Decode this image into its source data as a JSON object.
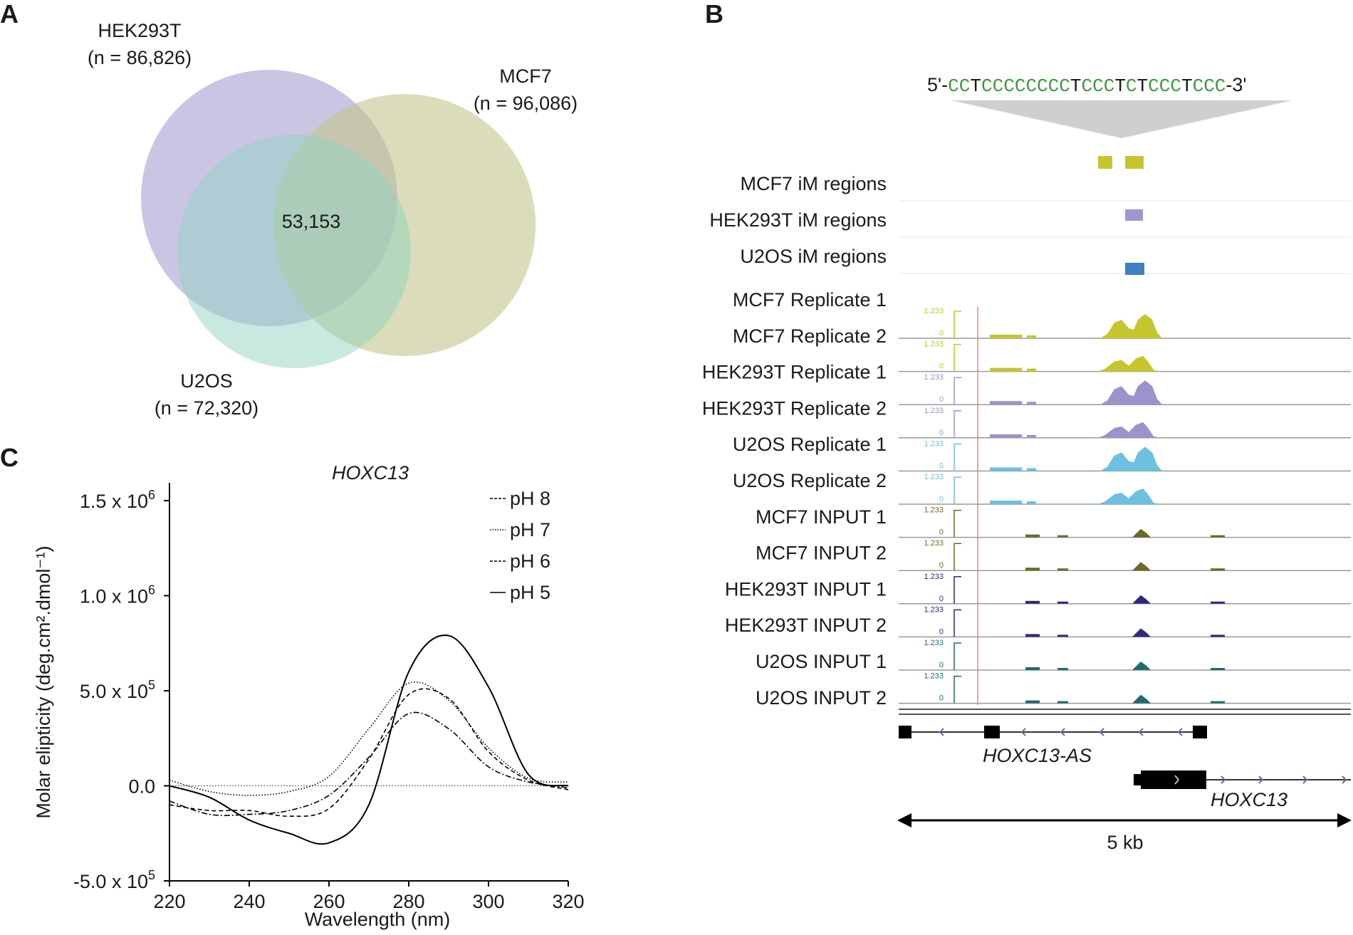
{
  "panels": {
    "a": "A",
    "b": "B",
    "c": "C"
  },
  "venn": {
    "sets": [
      {
        "name": "HEK293T",
        "count": "(n = 86,826)",
        "color": "#a99fd2"
      },
      {
        "name": "MCF7",
        "count": "(n = 96,086)",
        "color": "#c3c48a"
      },
      {
        "name": "U2OS",
        "count": "(n = 72,320)",
        "color": "#90d4c1"
      }
    ],
    "overlap": "53,153"
  },
  "sequence": {
    "prefix": "5'-",
    "suffix": "-3'",
    "bases": [
      {
        "b": "C",
        "c": "#3a9a3a"
      },
      {
        "b": "C",
        "c": "#3a9a3a"
      },
      {
        "b": "T",
        "c": "#1a1a1a"
      },
      {
        "b": "C",
        "c": "#3a9a3a"
      },
      {
        "b": "C",
        "c": "#3a9a3a"
      },
      {
        "b": "C",
        "c": "#3a9a3a"
      },
      {
        "b": "C",
        "c": "#3a9a3a"
      },
      {
        "b": "C",
        "c": "#3a9a3a"
      },
      {
        "b": "C",
        "c": "#3a9a3a"
      },
      {
        "b": "C",
        "c": "#3a9a3a"
      },
      {
        "b": "C",
        "c": "#3a9a3a"
      },
      {
        "b": "T",
        "c": "#1a1a1a"
      },
      {
        "b": "C",
        "c": "#3a9a3a"
      },
      {
        "b": "C",
        "c": "#3a9a3a"
      },
      {
        "b": "C",
        "c": "#3a9a3a"
      },
      {
        "b": "T",
        "c": "#1a1a1a"
      },
      {
        "b": "C",
        "c": "#3a9a3a"
      },
      {
        "b": "T",
        "c": "#1a1a1a"
      },
      {
        "b": "C",
        "c": "#3a9a3a"
      },
      {
        "b": "C",
        "c": "#3a9a3a"
      },
      {
        "b": "C",
        "c": "#3a9a3a"
      },
      {
        "b": "T",
        "c": "#1a1a1a"
      },
      {
        "b": "C",
        "c": "#3a9a3a"
      },
      {
        "b": "C",
        "c": "#3a9a3a"
      },
      {
        "b": "C",
        "c": "#3a9a3a"
      }
    ]
  },
  "region_tracks": [
    {
      "label": "MCF7 iM regions",
      "color": "#c5c62d"
    },
    {
      "label": "HEK293T iM regions",
      "color": "#a196d0"
    },
    {
      "label": "U2OS iM regions",
      "color": "#3f7fc4"
    }
  ],
  "signal_tracks": [
    {
      "label": "MCF7 Replicate 1",
      "color": "#c5c62d",
      "type": "rep"
    },
    {
      "label": "MCF7 Replicate 2",
      "color": "#c5c62d",
      "type": "rep"
    },
    {
      "label": "HEK293T Replicate 1",
      "color": "#9d93cb",
      "type": "rep"
    },
    {
      "label": "HEK293T Replicate 2",
      "color": "#9d93cb",
      "type": "rep"
    },
    {
      "label": "U2OS Replicate 1",
      "color": "#6cc0e0",
      "type": "rep"
    },
    {
      "label": "U2OS Replicate 2",
      "color": "#6cc0e0",
      "type": "rep"
    },
    {
      "label": "MCF7 INPUT 1",
      "color": "#6b6a22",
      "type": "input"
    },
    {
      "label": "MCF7 INPUT 2",
      "color": "#6b6a22",
      "type": "input"
    },
    {
      "label": "HEK293T INPUT 1",
      "color": "#2e2a7a",
      "type": "input"
    },
    {
      "label": "HEK293T INPUT 2",
      "color": "#2e2a7a",
      "type": "input"
    },
    {
      "label": "U2OS INPUT 1",
      "color": "#1f6b6e",
      "type": "input"
    },
    {
      "label": "U2OS INPUT 2",
      "color": "#1f6b6e",
      "type": "input"
    }
  ],
  "track_scale": {
    "max": "1.233",
    "min": "0"
  },
  "genes": {
    "antisense": "HOXC13-AS",
    "sense": "HOXC13"
  },
  "scale_bar": "5 kb",
  "chart_data": {
    "type": "line",
    "title": "HOXC13",
    "xlabel": "Wavelength (nm)",
    "ylabel": "Molar elipticity (deg.cm².dmol⁻¹)",
    "xlim": [
      220,
      320
    ],
    "ylim": [
      -500000,
      1500000
    ],
    "xticks": [
      220,
      240,
      260,
      280,
      300,
      320
    ],
    "yticks": [
      {
        "value": 1500000,
        "label": "1.5 x 10",
        "exp": "6"
      },
      {
        "value": 1000000,
        "label": "1.0 x 10",
        "exp": "6"
      },
      {
        "value": 500000,
        "label": "5.0 x 10",
        "exp": "5"
      },
      {
        "value": 0,
        "label": "0.0",
        "exp": ""
      },
      {
        "value": -500000,
        "label": "-5.0 x 10",
        "exp": "5"
      }
    ],
    "x": [
      220,
      230,
      240,
      250,
      260,
      270,
      280,
      290,
      300,
      310,
      320
    ],
    "series": [
      {
        "name": "pH 8",
        "style": "dashdot",
        "values": [
          -80000,
          -150000,
          -150000,
          -130000,
          -50000,
          150000,
          380000,
          300000,
          100000,
          20000,
          -10000
        ]
      },
      {
        "name": "pH 7",
        "style": "dotted",
        "values": [
          30000,
          -30000,
          -50000,
          -30000,
          50000,
          300000,
          540000,
          450000,
          200000,
          40000,
          20000
        ]
      },
      {
        "name": "pH 6",
        "style": "dashed",
        "values": [
          -100000,
          -130000,
          -130000,
          -160000,
          -120000,
          140000,
          480000,
          460000,
          180000,
          30000,
          -20000
        ]
      },
      {
        "name": "pH 5",
        "style": "solid",
        "values": [
          0,
          -60000,
          -180000,
          -250000,
          -300000,
          -100000,
          600000,
          790000,
          520000,
          60000,
          0
        ]
      }
    ]
  }
}
